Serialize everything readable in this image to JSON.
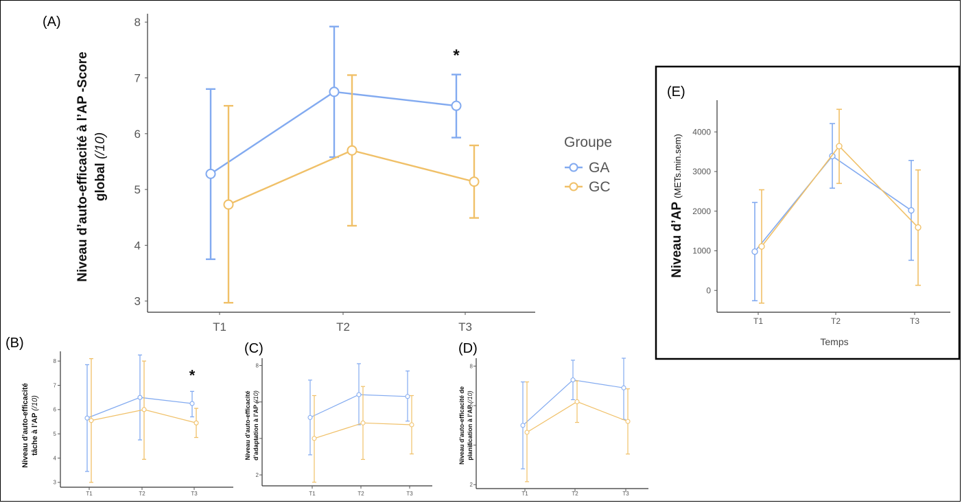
{
  "panel_labels": {
    "A": "(A)",
    "B": "(B)",
    "C": "(C)",
    "D": "(D)",
    "E": "(E)"
  },
  "legend": {
    "title": "Groupe",
    "items": [
      {
        "label": "GA",
        "color": "#82aaf0"
      },
      {
        "label": "GC",
        "color": "#f0c068"
      }
    ]
  },
  "significance_marker": "*",
  "panel_a_ylabel_line1": "Niveau d’auto-efficacité à l’AP -Score",
  "panel_a_ylabel_line2_bold": "global ",
  "panel_a_ylabel_line2_ital": "(/10)",
  "panel_b_ylabel_line1": "Niveau d’auto-efficacité",
  "panel_b_ylabel_line2_bold": "tâche à l’AP ",
  "panel_b_ylabel_line2_ital": "(/10)",
  "panel_c_ylabel_line1": "Niveau d’auto-efficacité",
  "panel_c_ylabel_line2_bold": "d’adaptation à l’AP ",
  "panel_c_ylabel_line2_ital": "(/10)",
  "panel_d_ylabel_line1": "Niveau d’auto-efficacité de",
  "panel_d_ylabel_line2_bold": "planification à l’AP ",
  "panel_d_ylabel_line2_ital": "(/10)",
  "panel_e_ylabel_bold": "Niveau d’AP ",
  "panel_e_ylabel_unit": "(METs.min.sem)",
  "panel_e_xlabel": "Temps",
  "colors": {
    "GA": "#82aaf0",
    "GC": "#f0c068",
    "axis": "#333333"
  },
  "chart_data": [
    {
      "id": "A",
      "type": "line",
      "x": [
        "T1",
        "T2",
        "T3"
      ],
      "ylim": [
        2.8,
        8.15
      ],
      "yticks": [
        3,
        4,
        5,
        6,
        7,
        8
      ],
      "xlabel": "",
      "significant": [
        "T3"
      ],
      "series": [
        {
          "name": "GA",
          "mean": [
            5.28,
            6.75,
            6.5
          ],
          "lower": [
            3.75,
            5.58,
            5.93
          ],
          "upper": [
            6.8,
            7.92,
            7.06
          ]
        },
        {
          "name": "GC",
          "mean": [
            4.73,
            5.7,
            5.14
          ],
          "lower": [
            2.97,
            4.35,
            4.49
          ],
          "upper": [
            6.5,
            7.05,
            5.79
          ]
        }
      ]
    },
    {
      "id": "B",
      "type": "line",
      "x": [
        "T1",
        "T2",
        "T3"
      ],
      "ylim": [
        2.8,
        8.4
      ],
      "yticks": [
        3,
        4,
        5,
        6,
        7,
        8
      ],
      "xlabel": "",
      "significant": [
        "T3"
      ],
      "series": [
        {
          "name": "GA",
          "mean": [
            5.65,
            6.5,
            6.25
          ],
          "lower": [
            3.45,
            4.75,
            5.7
          ],
          "upper": [
            7.85,
            8.25,
            6.75
          ]
        },
        {
          "name": "GC",
          "mean": [
            5.55,
            6.0,
            5.45
          ],
          "lower": [
            3.0,
            3.95,
            4.85
          ],
          "upper": [
            8.1,
            8.0,
            6.05
          ]
        }
      ]
    },
    {
      "id": "C",
      "type": "line",
      "x": [
        "T1",
        "T2",
        "T3"
      ],
      "ylim": [
        1.4,
        8.4
      ],
      "yticks": [
        2,
        4,
        6,
        8
      ],
      "xlabel": "",
      "significant": [],
      "series": [
        {
          "name": "GA",
          "mean": [
            5.15,
            6.4,
            6.3
          ],
          "lower": [
            3.1,
            4.75,
            4.95
          ],
          "upper": [
            7.2,
            8.1,
            7.7
          ]
        },
        {
          "name": "GC",
          "mean": [
            4.0,
            4.85,
            4.75
          ],
          "lower": [
            1.6,
            2.85,
            3.15
          ],
          "upper": [
            6.35,
            6.85,
            6.35
          ]
        }
      ]
    },
    {
      "id": "D",
      "type": "line",
      "x": [
        "T1",
        "T2",
        "T3"
      ],
      "ylim": [
        1.8,
        8.4
      ],
      "yticks": [
        2,
        4,
        6,
        8
      ],
      "xlabel": "",
      "significant": [],
      "series": [
        {
          "name": "GA",
          "mean": [
            5.0,
            7.3,
            6.9
          ],
          "lower": [
            2.8,
            6.3,
            5.3
          ],
          "upper": [
            7.2,
            8.3,
            8.4
          ]
        },
        {
          "name": "GC",
          "mean": [
            4.65,
            6.2,
            5.2
          ],
          "lower": [
            2.15,
            5.15,
            3.55
          ],
          "upper": [
            7.2,
            7.25,
            6.85
          ]
        }
      ]
    },
    {
      "id": "E",
      "type": "line",
      "x": [
        "T1",
        "T2",
        "T3"
      ],
      "ylim": [
        -550,
        4800
      ],
      "yticks": [
        0,
        1000,
        2000,
        3000,
        4000
      ],
      "xlabel": "Temps",
      "significant": [],
      "series": [
        {
          "name": "GA",
          "mean": [
            980,
            3390,
            2020
          ],
          "lower": [
            -260,
            2580,
            760
          ],
          "upper": [
            2220,
            4210,
            3280
          ]
        },
        {
          "name": "GC",
          "mean": [
            1110,
            3640,
            1590
          ],
          "lower": [
            -320,
            2700,
            130
          ],
          "upper": [
            2540,
            4570,
            3040
          ]
        }
      ]
    }
  ]
}
